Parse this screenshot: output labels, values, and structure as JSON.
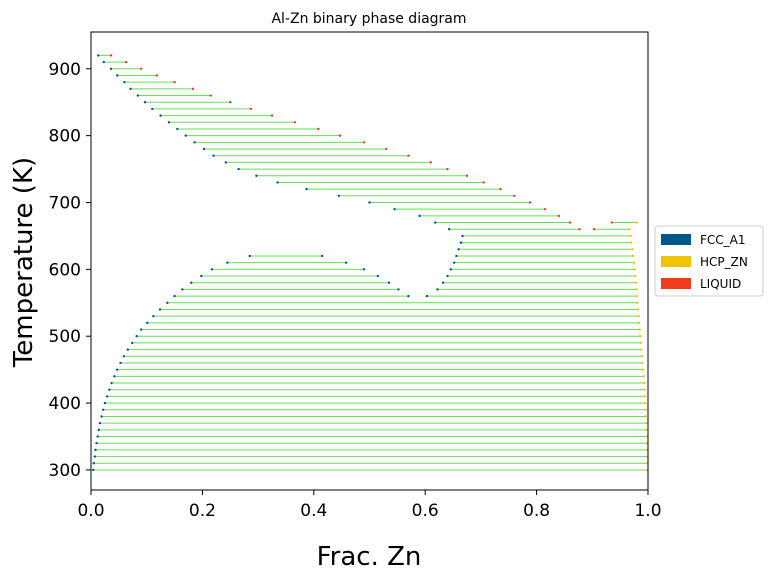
{
  "chart_data": {
    "type": "scatter",
    "title": "Al-Zn binary phase diagram",
    "xlabel": "Frac. Zn",
    "ylabel": "Temperature (K)",
    "xlim": [
      0.0,
      1.0
    ],
    "ylim": [
      270,
      955
    ],
    "xticks": [
      "0.0",
      "0.2",
      "0.4",
      "0.6",
      "0.8",
      "1.0"
    ],
    "xtick_values": [
      0.0,
      0.2,
      0.4,
      0.6,
      0.8,
      1.0
    ],
    "yticks": [
      "300",
      "400",
      "500",
      "600",
      "700",
      "800",
      "900"
    ],
    "ytick_values": [
      300,
      400,
      500,
      600,
      700,
      800,
      900
    ],
    "grid": false,
    "legend_position": "right",
    "tie_line_color": "#66dd55",
    "legend": [
      {
        "name": "FCC_A1",
        "color": "#00578a"
      },
      {
        "name": "HCP_ZN",
        "color": "#f0c400"
      },
      {
        "name": "LIQUID",
        "color": "#f03c1c"
      }
    ],
    "tie_lines": [
      {
        "T": 920,
        "x1": 0.013,
        "x2": 0.036,
        "p1": "FCC_A1",
        "p2": "LIQUID"
      },
      {
        "T": 910,
        "x1": 0.023,
        "x2": 0.063,
        "p1": "FCC_A1",
        "p2": "LIQUID"
      },
      {
        "T": 900,
        "x1": 0.036,
        "x2": 0.09,
        "p1": "FCC_A1",
        "p2": "LIQUID"
      },
      {
        "T": 890,
        "x1": 0.047,
        "x2": 0.118,
        "p1": "FCC_A1",
        "p2": "LIQUID"
      },
      {
        "T": 880,
        "x1": 0.06,
        "x2": 0.15,
        "p1": "FCC_A1",
        "p2": "LIQUID"
      },
      {
        "T": 870,
        "x1": 0.071,
        "x2": 0.183,
        "p1": "FCC_A1",
        "p2": "LIQUID"
      },
      {
        "T": 860,
        "x1": 0.084,
        "x2": 0.215,
        "p1": "FCC_A1",
        "p2": "LIQUID"
      },
      {
        "T": 850,
        "x1": 0.097,
        "x2": 0.25,
        "p1": "FCC_A1",
        "p2": "LIQUID"
      },
      {
        "T": 840,
        "x1": 0.11,
        "x2": 0.287,
        "p1": "FCC_A1",
        "p2": "LIQUID"
      },
      {
        "T": 830,
        "x1": 0.125,
        "x2": 0.325,
        "p1": "FCC_A1",
        "p2": "LIQUID"
      },
      {
        "T": 820,
        "x1": 0.14,
        "x2": 0.366,
        "p1": "FCC_A1",
        "p2": "LIQUID"
      },
      {
        "T": 810,
        "x1": 0.155,
        "x2": 0.408,
        "p1": "FCC_A1",
        "p2": "LIQUID"
      },
      {
        "T": 800,
        "x1": 0.17,
        "x2": 0.447,
        "p1": "FCC_A1",
        "p2": "LIQUID"
      },
      {
        "T": 790,
        "x1": 0.186,
        "x2": 0.49,
        "p1": "FCC_A1",
        "p2": "LIQUID"
      },
      {
        "T": 780,
        "x1": 0.203,
        "x2": 0.53,
        "p1": "FCC_A1",
        "p2": "LIQUID"
      },
      {
        "T": 770,
        "x1": 0.22,
        "x2": 0.57,
        "p1": "FCC_A1",
        "p2": "LIQUID"
      },
      {
        "T": 760,
        "x1": 0.242,
        "x2": 0.61,
        "p1": "FCC_A1",
        "p2": "LIQUID"
      },
      {
        "T": 750,
        "x1": 0.265,
        "x2": 0.64,
        "p1": "FCC_A1",
        "p2": "LIQUID"
      },
      {
        "T": 740,
        "x1": 0.297,
        "x2": 0.675,
        "p1": "FCC_A1",
        "p2": "LIQUID"
      },
      {
        "T": 730,
        "x1": 0.335,
        "x2": 0.705,
        "p1": "FCC_A1",
        "p2": "LIQUID"
      },
      {
        "T": 720,
        "x1": 0.387,
        "x2": 0.735,
        "p1": "FCC_A1",
        "p2": "LIQUID"
      },
      {
        "T": 710,
        "x1": 0.445,
        "x2": 0.76,
        "p1": "FCC_A1",
        "p2": "LIQUID"
      },
      {
        "T": 700,
        "x1": 0.5,
        "x2": 0.788,
        "p1": "FCC_A1",
        "p2": "LIQUID"
      },
      {
        "T": 690,
        "x1": 0.545,
        "x2": 0.815,
        "p1": "FCC_A1",
        "p2": "LIQUID"
      },
      {
        "T": 680,
        "x1": 0.59,
        "x2": 0.84,
        "p1": "FCC_A1",
        "p2": "LIQUID"
      },
      {
        "T": 670,
        "x1": 0.618,
        "x2": 0.86,
        "p1": "FCC_A1",
        "p2": "LIQUID"
      },
      {
        "T": 660,
        "x1": 0.643,
        "x2": 0.877,
        "p1": "FCC_A1",
        "p2": "LIQUID"
      },
      {
        "T": 660,
        "x1": 0.903,
        "x2": 0.967,
        "p1": "LIQUID",
        "p2": "HCP_ZN"
      },
      {
        "T": 670,
        "x1": 0.935,
        "x2": 0.98,
        "p1": "LIQUID",
        "p2": "HCP_ZN"
      },
      {
        "T": 650,
        "x1": 0.667,
        "x2": 0.969,
        "p1": "FCC_A1",
        "p2": "HCP_ZN"
      },
      {
        "T": 640,
        "x1": 0.664,
        "x2": 0.97,
        "p1": "FCC_A1",
        "p2": "HCP_ZN"
      },
      {
        "T": 630,
        "x1": 0.66,
        "x2": 0.972,
        "p1": "FCC_A1",
        "p2": "HCP_ZN"
      },
      {
        "T": 620,
        "x1": 0.656,
        "x2": 0.973,
        "p1": "FCC_A1",
        "p2": "HCP_ZN"
      },
      {
        "T": 610,
        "x1": 0.652,
        "x2": 0.975,
        "p1": "FCC_A1",
        "p2": "HCP_ZN"
      },
      {
        "T": 600,
        "x1": 0.646,
        "x2": 0.976,
        "p1": "FCC_A1",
        "p2": "HCP_ZN"
      },
      {
        "T": 590,
        "x1": 0.64,
        "x2": 0.977,
        "p1": "FCC_A1",
        "p2": "HCP_ZN"
      },
      {
        "T": 580,
        "x1": 0.632,
        "x2": 0.978,
        "p1": "FCC_A1",
        "p2": "HCP_ZN"
      },
      {
        "T": 570,
        "x1": 0.622,
        "x2": 0.979,
        "p1": "FCC_A1",
        "p2": "HCP_ZN"
      },
      {
        "T": 560,
        "x1": 0.603,
        "x2": 0.98,
        "p1": "FCC_A1",
        "p2": "HCP_ZN"
      },
      {
        "T": 620,
        "x1": 0.285,
        "x2": 0.415,
        "p1": "FCC_A1",
        "p2": "FCC_A1"
      },
      {
        "T": 610,
        "x1": 0.245,
        "x2": 0.458,
        "p1": "FCC_A1",
        "p2": "FCC_A1"
      },
      {
        "T": 600,
        "x1": 0.217,
        "x2": 0.49,
        "p1": "FCC_A1",
        "p2": "FCC_A1"
      },
      {
        "T": 590,
        "x1": 0.198,
        "x2": 0.515,
        "p1": "FCC_A1",
        "p2": "FCC_A1"
      },
      {
        "T": 580,
        "x1": 0.18,
        "x2": 0.535,
        "p1": "FCC_A1",
        "p2": "FCC_A1"
      },
      {
        "T": 570,
        "x1": 0.164,
        "x2": 0.552,
        "p1": "FCC_A1",
        "p2": "FCC_A1"
      },
      {
        "T": 560,
        "x1": 0.15,
        "x2": 0.57,
        "p1": "FCC_A1",
        "p2": "FCC_A1"
      },
      {
        "T": 550,
        "x1": 0.137,
        "x2": 0.981,
        "p1": "FCC_A1",
        "p2": "HCP_ZN"
      },
      {
        "T": 540,
        "x1": 0.124,
        "x2": 0.982,
        "p1": "FCC_A1",
        "p2": "HCP_ZN"
      },
      {
        "T": 530,
        "x1": 0.112,
        "x2": 0.983,
        "p1": "FCC_A1",
        "p2": "HCP_ZN"
      },
      {
        "T": 520,
        "x1": 0.101,
        "x2": 0.984,
        "p1": "FCC_A1",
        "p2": "HCP_ZN"
      },
      {
        "T": 510,
        "x1": 0.09,
        "x2": 0.985,
        "p1": "FCC_A1",
        "p2": "HCP_ZN"
      },
      {
        "T": 500,
        "x1": 0.082,
        "x2": 0.986,
        "p1": "FCC_A1",
        "p2": "HCP_ZN"
      },
      {
        "T": 490,
        "x1": 0.074,
        "x2": 0.987,
        "p1": "FCC_A1",
        "p2": "HCP_ZN"
      },
      {
        "T": 480,
        "x1": 0.066,
        "x2": 0.988,
        "p1": "FCC_A1",
        "p2": "HCP_ZN"
      },
      {
        "T": 470,
        "x1": 0.059,
        "x2": 0.989,
        "p1": "FCC_A1",
        "p2": "HCP_ZN"
      },
      {
        "T": 460,
        "x1": 0.053,
        "x2": 0.99,
        "p1": "FCC_A1",
        "p2": "HCP_ZN"
      },
      {
        "T": 450,
        "x1": 0.047,
        "x2": 0.991,
        "p1": "FCC_A1",
        "p2": "HCP_ZN"
      },
      {
        "T": 440,
        "x1": 0.042,
        "x2": 0.992,
        "p1": "FCC_A1",
        "p2": "HCP_ZN"
      },
      {
        "T": 430,
        "x1": 0.037,
        "x2": 0.993,
        "p1": "FCC_A1",
        "p2": "HCP_ZN"
      },
      {
        "T": 420,
        "x1": 0.033,
        "x2": 0.994,
        "p1": "FCC_A1",
        "p2": "HCP_ZN"
      },
      {
        "T": 410,
        "x1": 0.029,
        "x2": 0.995,
        "p1": "FCC_A1",
        "p2": "HCP_ZN"
      },
      {
        "T": 400,
        "x1": 0.025,
        "x2": 0.995,
        "p1": "FCC_A1",
        "p2": "HCP_ZN"
      },
      {
        "T": 390,
        "x1": 0.022,
        "x2": 0.996,
        "p1": "FCC_A1",
        "p2": "HCP_ZN"
      },
      {
        "T": 380,
        "x1": 0.019,
        "x2": 0.996,
        "p1": "FCC_A1",
        "p2": "HCP_ZN"
      },
      {
        "T": 370,
        "x1": 0.016,
        "x2": 0.997,
        "p1": "FCC_A1",
        "p2": "HCP_ZN"
      },
      {
        "T": 360,
        "x1": 0.014,
        "x2": 0.997,
        "p1": "FCC_A1",
        "p2": "HCP_ZN"
      },
      {
        "T": 350,
        "x1": 0.012,
        "x2": 0.998,
        "p1": "FCC_A1",
        "p2": "HCP_ZN"
      },
      {
        "T": 340,
        "x1": 0.01,
        "x2": 0.998,
        "p1": "FCC_A1",
        "p2": "HCP_ZN"
      },
      {
        "T": 330,
        "x1": 0.008,
        "x2": 0.998,
        "p1": "FCC_A1",
        "p2": "HCP_ZN"
      },
      {
        "T": 320,
        "x1": 0.007,
        "x2": 0.999,
        "p1": "FCC_A1",
        "p2": "HCP_ZN"
      },
      {
        "T": 310,
        "x1": 0.005,
        "x2": 0.999,
        "p1": "FCC_A1",
        "p2": "HCP_ZN"
      },
      {
        "T": 300,
        "x1": 0.004,
        "x2": 0.999,
        "p1": "FCC_A1",
        "p2": "HCP_ZN"
      }
    ]
  }
}
